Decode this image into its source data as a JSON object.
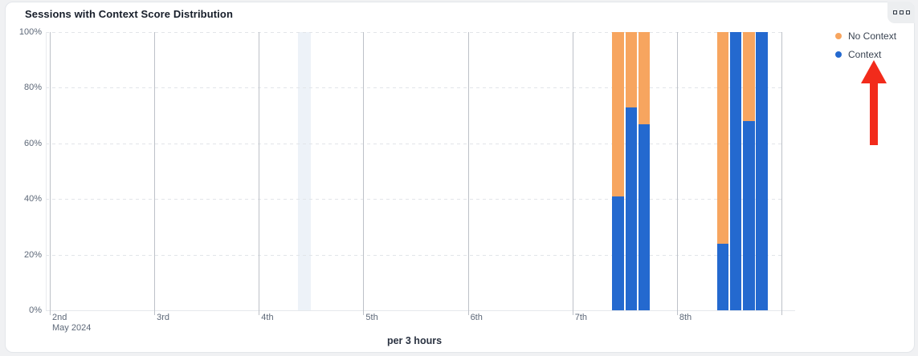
{
  "card": {
    "title": "Sessions with Context Score Distribution",
    "menu_icon": "ellipsis-squares-icon"
  },
  "colors": {
    "context_blue": "#2469cf",
    "no_context_orange": "#f7a55f",
    "highlight_band": "#edf2f8",
    "annotation_arrow_red": "#f22b1b"
  },
  "chart_data": {
    "type": "bar",
    "stacked": true,
    "percent_stacked": true,
    "title": "Sessions with Context Score Distribution",
    "xlabel": "per 3 hours",
    "ylabel": "",
    "ylim": [
      0,
      100
    ],
    "y_ticks": [
      {
        "value": 0,
        "label": "0%"
      },
      {
        "value": 20,
        "label": "20%"
      },
      {
        "value": 40,
        "label": "40%"
      },
      {
        "value": 60,
        "label": "60%"
      },
      {
        "value": 80,
        "label": "80%"
      },
      {
        "value": 100,
        "label": "100%"
      }
    ],
    "x_axis": {
      "day_ticks": [
        "2nd",
        "3rd",
        "4th",
        "5th",
        "6th",
        "7th",
        "8th"
      ],
      "month_label": "May 2024",
      "slots_per_day": 8,
      "slot_hours": 3
    },
    "legend": [
      {
        "label": "No Context",
        "color": "#f7a55f",
        "key": "no-context"
      },
      {
        "label": "Context",
        "color": "#2469cf",
        "key": "context"
      }
    ],
    "bars": [
      {
        "day": "7th",
        "day_index": 5,
        "slot": 3,
        "time": "09:00",
        "context_pct": 41,
        "no_context_pct": 59
      },
      {
        "day": "7th",
        "day_index": 5,
        "slot": 4,
        "time": "12:00",
        "context_pct": 73,
        "no_context_pct": 27
      },
      {
        "day": "7th",
        "day_index": 5,
        "slot": 5,
        "time": "15:00",
        "context_pct": 67,
        "no_context_pct": 33
      },
      {
        "day": "8th",
        "day_index": 6,
        "slot": 3,
        "time": "09:00",
        "context_pct": 24,
        "no_context_pct": 76
      },
      {
        "day": "8th",
        "day_index": 6,
        "slot": 4,
        "time": "12:00",
        "context_pct": 100,
        "no_context_pct": 0
      },
      {
        "day": "8th",
        "day_index": 6,
        "slot": 5,
        "time": "15:00",
        "context_pct": 68,
        "no_context_pct": 32
      },
      {
        "day": "8th",
        "day_index": 6,
        "slot": 6,
        "time": "18:00",
        "context_pct": 100,
        "no_context_pct": 0
      }
    ],
    "highlight_band": {
      "day_index": 2,
      "slot": 3
    },
    "grid": {
      "horizontal": "dashed",
      "vertical_day_lines": "solid"
    },
    "legend_position": "right-top"
  },
  "annotation": {
    "type": "arrow-up",
    "points_at": "Context legend item"
  }
}
